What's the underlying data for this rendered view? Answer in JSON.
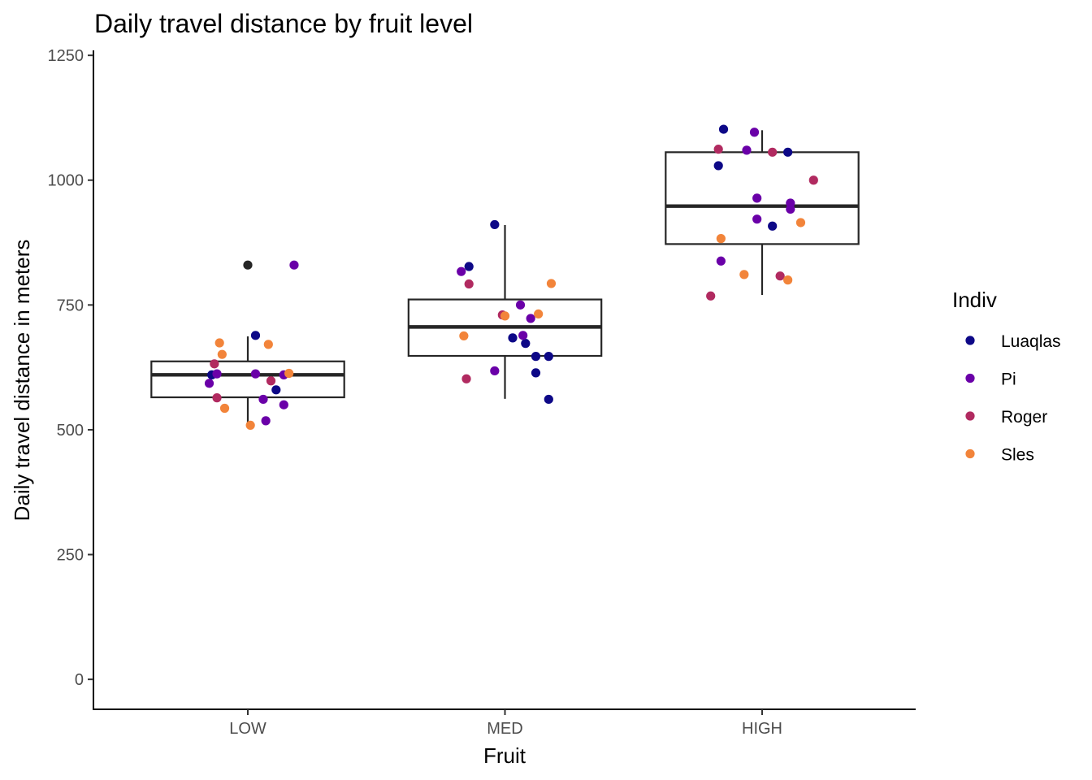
{
  "chart_data": {
    "type": "box-jitter",
    "title": "Daily travel distance by fruit level",
    "xlabel": "Fruit",
    "ylabel": "Daily travel distance in meters",
    "categories": [
      "LOW",
      "MED",
      "HIGH"
    ],
    "ylim": [
      -60,
      1260
    ],
    "yticks": [
      0,
      250,
      500,
      750,
      1000,
      1250
    ],
    "grid": false,
    "legend": {
      "title": "Indiv",
      "placement": "right",
      "entries": [
        {
          "name": "Luaqlas",
          "color": "#0d0887"
        },
        {
          "name": "Pi",
          "color": "#6a00a8"
        },
        {
          "name": "Roger",
          "color": "#b12a60"
        },
        {
          "name": "Sles",
          "color": "#f2843a"
        }
      ]
    },
    "boxes": [
      {
        "category": "LOW",
        "q1": 565,
        "median": 610,
        "q3": 637,
        "whisker_low": 512,
        "whisker_high": 687,
        "outliers": [
          830
        ]
      },
      {
        "category": "MED",
        "q1": 648,
        "median": 706,
        "q3": 761,
        "whisker_low": 562,
        "whisker_high": 910,
        "outliers": []
      },
      {
        "category": "HIGH",
        "q1": 872,
        "median": 948,
        "q3": 1056,
        "whisker_low": 770,
        "whisker_high": 1100,
        "outliers": []
      }
    ],
    "points": [
      {
        "category": "LOW",
        "jitter": -0.14,
        "y": 610,
        "indiv": "Luaqlas"
      },
      {
        "category": "LOW",
        "jitter": 0.03,
        "y": 689,
        "indiv": "Luaqlas"
      },
      {
        "category": "LOW",
        "jitter": 0.11,
        "y": 580,
        "indiv": "Luaqlas"
      },
      {
        "category": "LOW",
        "jitter": 0.18,
        "y": 830,
        "indiv": "Pi"
      },
      {
        "category": "LOW",
        "jitter": -0.15,
        "y": 593,
        "indiv": "Pi"
      },
      {
        "category": "LOW",
        "jitter": -0.12,
        "y": 612,
        "indiv": "Pi"
      },
      {
        "category": "LOW",
        "jitter": 0.03,
        "y": 612,
        "indiv": "Pi"
      },
      {
        "category": "LOW",
        "jitter": 0.06,
        "y": 561,
        "indiv": "Pi"
      },
      {
        "category": "LOW",
        "jitter": 0.07,
        "y": 518,
        "indiv": "Pi"
      },
      {
        "category": "LOW",
        "jitter": 0.14,
        "y": 550,
        "indiv": "Pi"
      },
      {
        "category": "LOW",
        "jitter": 0.14,
        "y": 610,
        "indiv": "Pi"
      },
      {
        "category": "LOW",
        "jitter": -0.13,
        "y": 632,
        "indiv": "Roger"
      },
      {
        "category": "LOW",
        "jitter": -0.12,
        "y": 564,
        "indiv": "Roger"
      },
      {
        "category": "LOW",
        "jitter": 0.09,
        "y": 598,
        "indiv": "Roger"
      },
      {
        "category": "LOW",
        "jitter": -0.11,
        "y": 674,
        "indiv": "Sles"
      },
      {
        "category": "LOW",
        "jitter": -0.1,
        "y": 651,
        "indiv": "Sles"
      },
      {
        "category": "LOW",
        "jitter": -0.09,
        "y": 543,
        "indiv": "Sles"
      },
      {
        "category": "LOW",
        "jitter": 0.08,
        "y": 671,
        "indiv": "Sles"
      },
      {
        "category": "LOW",
        "jitter": 0.16,
        "y": 613,
        "indiv": "Sles"
      },
      {
        "category": "LOW",
        "jitter": 0.01,
        "y": 509,
        "indiv": "Sles"
      },
      {
        "category": "MED",
        "jitter": -0.04,
        "y": 911,
        "indiv": "Luaqlas"
      },
      {
        "category": "MED",
        "jitter": -0.14,
        "y": 827,
        "indiv": "Luaqlas"
      },
      {
        "category": "MED",
        "jitter": 0.03,
        "y": 684,
        "indiv": "Luaqlas"
      },
      {
        "category": "MED",
        "jitter": 0.08,
        "y": 673,
        "indiv": "Luaqlas"
      },
      {
        "category": "MED",
        "jitter": 0.12,
        "y": 647,
        "indiv": "Luaqlas"
      },
      {
        "category": "MED",
        "jitter": 0.17,
        "y": 647,
        "indiv": "Luaqlas"
      },
      {
        "category": "MED",
        "jitter": 0.12,
        "y": 614,
        "indiv": "Luaqlas"
      },
      {
        "category": "MED",
        "jitter": 0.17,
        "y": 561,
        "indiv": "Luaqlas"
      },
      {
        "category": "MED",
        "jitter": -0.17,
        "y": 817,
        "indiv": "Pi"
      },
      {
        "category": "MED",
        "jitter": 0.06,
        "y": 750,
        "indiv": "Pi"
      },
      {
        "category": "MED",
        "jitter": 0.1,
        "y": 723,
        "indiv": "Pi"
      },
      {
        "category": "MED",
        "jitter": 0.07,
        "y": 689,
        "indiv": "Pi"
      },
      {
        "category": "MED",
        "jitter": -0.04,
        "y": 618,
        "indiv": "Pi"
      },
      {
        "category": "MED",
        "jitter": -0.14,
        "y": 792,
        "indiv": "Roger"
      },
      {
        "category": "MED",
        "jitter": -0.01,
        "y": 730,
        "indiv": "Roger"
      },
      {
        "category": "MED",
        "jitter": -0.15,
        "y": 602,
        "indiv": "Roger"
      },
      {
        "category": "MED",
        "jitter": 0.18,
        "y": 793,
        "indiv": "Sles"
      },
      {
        "category": "MED",
        "jitter": 0.13,
        "y": 732,
        "indiv": "Sles"
      },
      {
        "category": "MED",
        "jitter": 0.0,
        "y": 728,
        "indiv": "Sles"
      },
      {
        "category": "MED",
        "jitter": -0.16,
        "y": 688,
        "indiv": "Sles"
      },
      {
        "category": "HIGH",
        "jitter": -0.15,
        "y": 1102,
        "indiv": "Luaqlas"
      },
      {
        "category": "HIGH",
        "jitter": 0.1,
        "y": 1056,
        "indiv": "Luaqlas"
      },
      {
        "category": "HIGH",
        "jitter": -0.17,
        "y": 1029,
        "indiv": "Luaqlas"
      },
      {
        "category": "HIGH",
        "jitter": 0.04,
        "y": 908,
        "indiv": "Luaqlas"
      },
      {
        "category": "HIGH",
        "jitter": -0.03,
        "y": 1096,
        "indiv": "Pi"
      },
      {
        "category": "HIGH",
        "jitter": -0.06,
        "y": 1060,
        "indiv": "Pi"
      },
      {
        "category": "HIGH",
        "jitter": -0.02,
        "y": 964,
        "indiv": "Pi"
      },
      {
        "category": "HIGH",
        "jitter": 0.11,
        "y": 954,
        "indiv": "Pi"
      },
      {
        "category": "HIGH",
        "jitter": 0.11,
        "y": 942,
        "indiv": "Pi"
      },
      {
        "category": "HIGH",
        "jitter": -0.02,
        "y": 922,
        "indiv": "Pi"
      },
      {
        "category": "HIGH",
        "jitter": -0.16,
        "y": 838,
        "indiv": "Pi"
      },
      {
        "category": "HIGH",
        "jitter": -0.17,
        "y": 1062,
        "indiv": "Roger"
      },
      {
        "category": "HIGH",
        "jitter": 0.04,
        "y": 1056,
        "indiv": "Roger"
      },
      {
        "category": "HIGH",
        "jitter": 0.2,
        "y": 1000,
        "indiv": "Roger"
      },
      {
        "category": "HIGH",
        "jitter": 0.07,
        "y": 808,
        "indiv": "Roger"
      },
      {
        "category": "HIGH",
        "jitter": -0.2,
        "y": 768,
        "indiv": "Roger"
      },
      {
        "category": "HIGH",
        "jitter": 0.15,
        "y": 915,
        "indiv": "Sles"
      },
      {
        "category": "HIGH",
        "jitter": -0.16,
        "y": 883,
        "indiv": "Sles"
      },
      {
        "category": "HIGH",
        "jitter": -0.07,
        "y": 811,
        "indiv": "Sles"
      },
      {
        "category": "HIGH",
        "jitter": 0.1,
        "y": 800,
        "indiv": "Sles"
      }
    ]
  }
}
